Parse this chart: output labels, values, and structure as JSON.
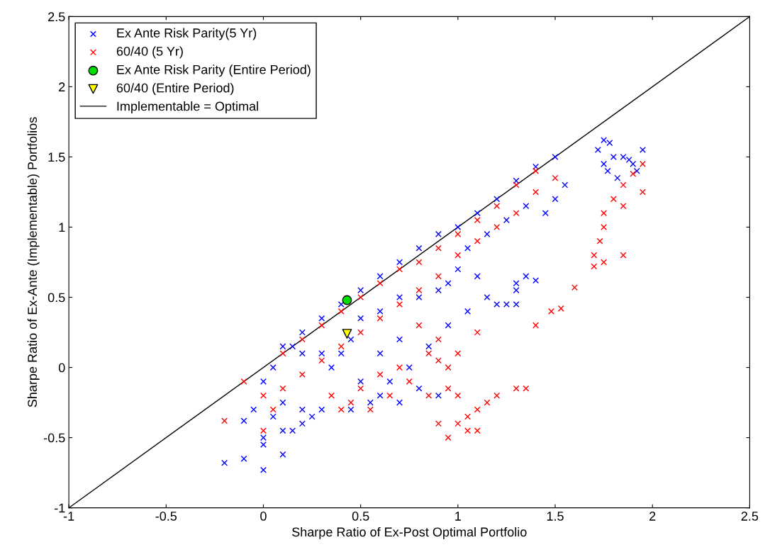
{
  "chart_data": {
    "type": "scatter",
    "xlabel": "Sharpe Ratio of Ex-Post Optimal Portfolio",
    "ylabel": "Sharpe Ratio of Ex-Ante (Implementable) Portfolios",
    "xlim": [
      -1,
      2.5
    ],
    "ylim": [
      -1,
      2.5
    ],
    "xticks": [
      -1,
      -0.5,
      0,
      0.5,
      1,
      1.5,
      2,
      2.5
    ],
    "yticks": [
      -1,
      -0.5,
      0,
      0.5,
      1,
      1.5,
      2,
      2.5
    ],
    "grid": false,
    "legend": "top left",
    "series": [
      {
        "name": "Ex Ante Risk Parity(5 Yr)",
        "color": "#0000ff",
        "marker": "cross",
        "x": [
          1.75,
          1.78,
          1.72,
          1.8,
          1.75,
          1.85,
          1.9,
          1.95,
          1.92,
          1.82,
          1.88,
          1.77,
          1.5,
          1.4,
          1.3,
          1.2,
          1.1,
          1.0,
          0.9,
          0.8,
          0.7,
          0.6,
          0.5,
          0.4,
          0.3,
          0.2,
          0.15,
          1.55,
          1.5,
          1.45,
          1.35,
          1.25,
          1.15,
          1.05,
          1.0,
          0.95,
          0.9,
          1.1,
          1.3,
          1.35,
          1.4,
          1.25,
          1.3,
          1.15,
          1.2,
          1.3,
          0.8,
          0.7,
          0.6,
          0.5,
          0.45,
          0.4,
          0.35,
          0.3,
          0.2,
          0.1,
          0.05,
          0.0,
          0.1,
          0.2,
          0.25,
          0.3,
          -0.2,
          -0.1,
          0.0,
          0.0,
          0.0,
          0.1,
          0.15,
          0.2,
          0.1,
          -0.05,
          -0.1,
          0.05,
          0.5,
          0.6,
          0.7,
          0.8,
          0.9,
          0.45,
          0.55,
          0.65,
          0.75,
          0.85,
          0.95,
          1.05,
          0.7,
          0.6
        ],
        "values": [
          1.62,
          1.6,
          1.55,
          1.5,
          1.45,
          1.5,
          1.45,
          1.55,
          1.4,
          1.35,
          1.48,
          1.4,
          1.5,
          1.43,
          1.33,
          1.2,
          1.1,
          1.0,
          0.95,
          0.85,
          0.75,
          0.65,
          0.55,
          0.45,
          0.35,
          0.25,
          0.15,
          1.3,
          1.2,
          1.1,
          1.15,
          1.05,
          0.95,
          0.85,
          0.7,
          0.6,
          0.55,
          0.65,
          0.6,
          0.65,
          0.62,
          0.45,
          0.55,
          0.5,
          0.45,
          0.45,
          0.5,
          0.5,
          0.4,
          0.35,
          0.2,
          0.1,
          0.0,
          0.1,
          0.1,
          0.15,
          0.0,
          -0.1,
          -0.25,
          -0.3,
          -0.35,
          -0.3,
          -0.68,
          -0.65,
          -0.73,
          -0.55,
          -0.5,
          -0.62,
          -0.45,
          -0.4,
          -0.45,
          -0.3,
          -0.38,
          -0.35,
          -0.1,
          -0.2,
          -0.25,
          -0.15,
          -0.2,
          -0.3,
          -0.25,
          -0.1,
          0.0,
          0.15,
          0.3,
          0.4,
          0.2,
          0.1
        ]
      },
      {
        "name": "60/40 (5 Yr)",
        "color": "#ff0000",
        "marker": "cross",
        "x": [
          1.95,
          1.9,
          1.85,
          1.8,
          1.85,
          1.95,
          1.75,
          1.75,
          1.73,
          1.7,
          1.75,
          1.85,
          1.7,
          1.6,
          1.53,
          1.48,
          1.4,
          1.35,
          1.3,
          1.2,
          1.15,
          1.1,
          1.05,
          1.0,
          0.95,
          1.05,
          1.0,
          1.1,
          1.5,
          1.4,
          1.3,
          1.2,
          1.1,
          1.0,
          0.9,
          0.8,
          0.7,
          0.6,
          0.5,
          0.4,
          0.3,
          0.2,
          0.1,
          1.4,
          1.3,
          1.2,
          1.1,
          1.0,
          0.9,
          0.8,
          0.7,
          0.6,
          0.5,
          0.4,
          0.3,
          0.2,
          0.1,
          0.0,
          -0.1,
          -0.2,
          0.0,
          0.05,
          0.85,
          0.9,
          0.95,
          1.0,
          0.9,
          0.8,
          0.7,
          0.6,
          0.5,
          0.45,
          0.55,
          0.65,
          0.75,
          0.85,
          0.95,
          1.1,
          0.9,
          0.35,
          0.4
        ],
        "values": [
          1.45,
          1.38,
          1.3,
          1.2,
          1.15,
          1.25,
          1.1,
          1.0,
          0.9,
          0.8,
          0.75,
          0.8,
          0.72,
          0.57,
          0.42,
          0.4,
          0.3,
          -0.15,
          -0.15,
          -0.2,
          -0.25,
          -0.3,
          -0.35,
          -0.4,
          -0.5,
          -0.45,
          -0.2,
          -0.45,
          1.35,
          1.4,
          1.3,
          1.15,
          1.05,
          0.95,
          0.85,
          0.75,
          0.7,
          0.6,
          0.5,
          0.4,
          0.3,
          0.2,
          0.1,
          1.25,
          1.1,
          1.0,
          0.9,
          0.8,
          0.65,
          0.55,
          0.45,
          0.35,
          0.25,
          0.15,
          0.05,
          -0.05,
          -0.15,
          -0.2,
          -0.1,
          -0.38,
          -0.45,
          -0.3,
          0.1,
          0.05,
          0.0,
          0.1,
          0.2,
          0.3,
          0.0,
          -0.05,
          -0.15,
          -0.25,
          -0.3,
          -0.2,
          -0.1,
          -0.2,
          -0.15,
          0.25,
          -0.4,
          -0.2,
          -0.3
        ]
      },
      {
        "name": "Ex Ante Risk Parity (Entire Period)",
        "color": "#00dd00",
        "marker": "circle",
        "x": [
          0.43
        ],
        "values": [
          0.48
        ]
      },
      {
        "name": "60/40 (Entire Period)",
        "color": "#ffff00",
        "marker": "triangle",
        "x": [
          0.43
        ],
        "values": [
          0.24
        ]
      },
      {
        "name": "Implementable = Optimal",
        "type": "line",
        "color": "#000000",
        "marker": "none",
        "x": [
          -1,
          2.5
        ],
        "values": [
          -1,
          2.5
        ]
      }
    ]
  }
}
